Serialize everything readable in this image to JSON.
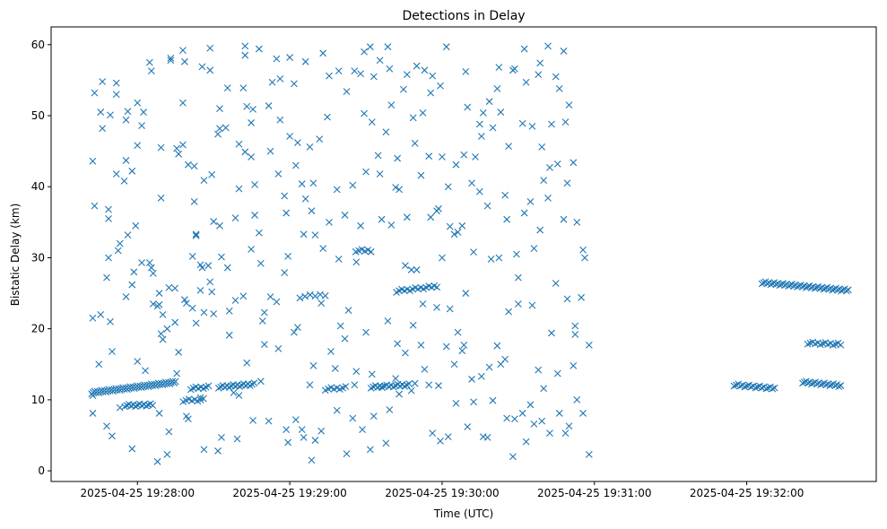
{
  "chart_data": {
    "type": "scatter",
    "title": "Detections in Delay",
    "xlabel": "Time (UTC)",
    "ylabel": "Bistatic Delay (km)",
    "x_units": "seconds after 2025-04-25 19:27:00 UTC",
    "xlim": [
      26,
      351
    ],
    "ylim": [
      -1.5,
      62.5
    ],
    "marker": "x",
    "color": "#1f77b4",
    "grid": false,
    "x_ticks": [
      {
        "value": 60,
        "label": "2025-04-25 19:28:00"
      },
      {
        "value": 120,
        "label": "2025-04-25 19:29:00"
      },
      {
        "value": 180,
        "label": "2025-04-25 19:30:00"
      },
      {
        "value": 240,
        "label": "2025-04-25 19:31:00"
      },
      {
        "value": 300,
        "label": "2025-04-25 19:32:00"
      }
    ],
    "y_ticks": [
      {
        "value": 0,
        "label": "0"
      },
      {
        "value": 10,
        "label": "10"
      },
      {
        "value": 20,
        "label": "20"
      },
      {
        "value": 30,
        "label": "30"
      },
      {
        "value": 40,
        "label": "40"
      },
      {
        "value": 50,
        "label": "50"
      },
      {
        "value": 60,
        "label": "60"
      }
    ],
    "tracks": [
      {
        "t0": 42,
        "t1": 75,
        "d0": 11.0,
        "d1": 12.5,
        "n": 60
      },
      {
        "t0": 55,
        "t1": 66,
        "d0": 9.2,
        "d1": 9.3,
        "n": 14
      },
      {
        "t0": 78,
        "t1": 86,
        "d0": 9.9,
        "d1": 10.0,
        "n": 8
      },
      {
        "t0": 81,
        "t1": 88,
        "d0": 11.6,
        "d1": 11.8,
        "n": 8
      },
      {
        "t0": 92,
        "t1": 106,
        "d0": 11.8,
        "d1": 12.2,
        "n": 18
      },
      {
        "t0": 124,
        "t1": 134,
        "d0": 24.5,
        "d1": 24.8,
        "n": 6
      },
      {
        "t0": 134,
        "t1": 142,
        "d0": 11.5,
        "d1": 11.7,
        "n": 8
      },
      {
        "t0": 146,
        "t1": 152,
        "d0": 31.0,
        "d1": 31.0,
        "n": 6
      },
      {
        "t0": 152,
        "t1": 167,
        "d0": 11.8,
        "d1": 12.1,
        "n": 18
      },
      {
        "t0": 162,
        "t1": 178,
        "d0": 25.3,
        "d1": 26.0,
        "n": 16
      },
      {
        "t0": 295,
        "t1": 311,
        "d0": 12.1,
        "d1": 11.6,
        "n": 20
      },
      {
        "t0": 306,
        "t1": 340,
        "d0": 26.5,
        "d1": 25.4,
        "n": 50
      },
      {
        "t0": 322,
        "t1": 337,
        "d0": 12.5,
        "d1": 12.0,
        "n": 22
      },
      {
        "t0": 324,
        "t1": 337,
        "d0": 18.0,
        "d1": 17.8,
        "n": 14
      }
    ],
    "points": [
      [
        42,
        43.6
      ],
      [
        42,
        21.5
      ],
      [
        42,
        8.1
      ],
      [
        42,
        10.6
      ],
      [
        43,
        53.2
      ],
      [
        43,
        37.3
      ],
      [
        44,
        15
      ],
      [
        45,
        50.5
      ],
      [
        45,
        22
      ],
      [
        46,
        54.8
      ],
      [
        46,
        48.2
      ],
      [
        47,
        27.2
      ],
      [
        47,
        6.3
      ],
      [
        48,
        35.5
      ],
      [
        48,
        36.8
      ],
      [
        48,
        30
      ],
      [
        49,
        50.1
      ],
      [
        49,
        21
      ],
      [
        50,
        16.8
      ],
      [
        50,
        4.9
      ],
      [
        51,
        54.6
      ],
      [
        51,
        41.8
      ],
      [
        51,
        53
      ],
      [
        52,
        31
      ],
      [
        53,
        32
      ],
      [
        53,
        8.9
      ],
      [
        54,
        40.8
      ],
      [
        55,
        43.7
      ],
      [
        55,
        24.5
      ],
      [
        55,
        49.4
      ],
      [
        56,
        33.2
      ],
      [
        56,
        50.6
      ],
      [
        57,
        26.2
      ],
      [
        57,
        42.2
      ],
      [
        57,
        3.1
      ],
      [
        58,
        28
      ],
      [
        59,
        34.5
      ],
      [
        60,
        15.4
      ],
      [
        60,
        51.8
      ],
      [
        60,
        45.8
      ],
      [
        61,
        48.6
      ],
      [
        61,
        29.3
      ],
      [
        62,
        50.5
      ],
      [
        63,
        14.1
      ],
      [
        64,
        57.5
      ],
      [
        64,
        29.3
      ],
      [
        65,
        56.3
      ],
      [
        65,
        28.6
      ],
      [
        66,
        27.8
      ],
      [
        66,
        23.5
      ],
      [
        67,
        23.2
      ],
      [
        67,
        1.3
      ],
      [
        68,
        23.4
      ],
      [
        68,
        25
      ],
      [
        68,
        8.1
      ],
      [
        69,
        45.5
      ],
      [
        69,
        19.3
      ],
      [
        69,
        38.4
      ],
      [
        70,
        18.5
      ],
      [
        70,
        22
      ],
      [
        71,
        20
      ],
      [
        71,
        2.3
      ],
      [
        72,
        25.8
      ],
      [
        72,
        5.5
      ],
      [
        73,
        58.1
      ],
      [
        73,
        57.8
      ],
      [
        74,
        25.7
      ],
      [
        74,
        20.9
      ],
      [
        75,
        45.4
      ],
      [
        75,
        13.7
      ],
      [
        76,
        44.6
      ],
      [
        76,
        16.7
      ],
      [
        77,
        59.2
      ],
      [
        77,
        45.9
      ],
      [
        77,
        51.8
      ],
      [
        78,
        57.6
      ],
      [
        78,
        24.1
      ],
      [
        79,
        23.6
      ],
      [
        79,
        7.7
      ],
      [
        80,
        43.1
      ],
      [
        80,
        7.3
      ],
      [
        81,
        30.2
      ],
      [
        81,
        22.9
      ],
      [
        82,
        37.9
      ],
      [
        82,
        42.9
      ],
      [
        83,
        33.3
      ],
      [
        83,
        33.1
      ],
      [
        83,
        20.8
      ],
      [
        84,
        29
      ],
      [
        84,
        25.4
      ],
      [
        84,
        10.3
      ],
      [
        85,
        56.9
      ],
      [
        85,
        28.6
      ],
      [
        86,
        40.9
      ],
      [
        86,
        22.3
      ],
      [
        86,
        3
      ],
      [
        87,
        28.9
      ],
      [
        88,
        59.5
      ],
      [
        88,
        56.4
      ],
      [
        88,
        26.6
      ],
      [
        89,
        41.7
      ],
      [
        89,
        25.2
      ],
      [
        90,
        35.1
      ],
      [
        90,
        22.1
      ],
      [
        91,
        47.4
      ],
      [
        91,
        2.8
      ],
      [
        92,
        51
      ],
      [
        92,
        48.2
      ],
      [
        92,
        34.5
      ],
      [
        93,
        30.1
      ],
      [
        93,
        4.7
      ],
      [
        94,
        48.3
      ],
      [
        95,
        53.9
      ],
      [
        95,
        28.6
      ],
      [
        96,
        22.5
      ],
      [
        96,
        19.1
      ],
      [
        97,
        11
      ],
      [
        98,
        35.6
      ],
      [
        98,
        24
      ],
      [
        99,
        4.5
      ],
      [
        100,
        46
      ],
      [
        100,
        39.7
      ],
      [
        100,
        10.6
      ],
      [
        101,
        53.9
      ],
      [
        101,
        24.6
      ],
      [
        102,
        59.8
      ],
      [
        102,
        58.5
      ],
      [
        102,
        44.9
      ],
      [
        103,
        51.3
      ],
      [
        103,
        15.2
      ],
      [
        104,
        49
      ],
      [
        104,
        44.2
      ],
      [
        104,
        31.2
      ],
      [
        105,
        50.9
      ],
      [
        105,
        7.1
      ],
      [
        106,
        40.3
      ],
      [
        106,
        36
      ],
      [
        107,
        59.4
      ],
      [
        107,
        33.5
      ],
      [
        108,
        29.2
      ],
      [
        108,
        12.6
      ],
      [
        109,
        21.1
      ],
      [
        110,
        22.3
      ],
      [
        110,
        17.8
      ],
      [
        111,
        51.4
      ],
      [
        111,
        7
      ],
      [
        112,
        45
      ],
      [
        112,
        24.5
      ],
      [
        113,
        54.7
      ],
      [
        114,
        58
      ],
      [
        114,
        23.8
      ],
      [
        115,
        41.8
      ],
      [
        115,
        17.2
      ],
      [
        116,
        55.2
      ],
      [
        116,
        49.4
      ],
      [
        117,
        38.7
      ],
      [
        117,
        27.9
      ],
      [
        118,
        36.3
      ],
      [
        118,
        5.8
      ],
      [
        119,
        30.2
      ],
      [
        119,
        4
      ],
      [
        120,
        58.2
      ],
      [
        120,
        47.1
      ],
      [
        121,
        54.5
      ],
      [
        121,
        19.5
      ],
      [
        122,
        43
      ],
      [
        122,
        7.2
      ],
      [
        123,
        46.2
      ],
      [
        123,
        20.2
      ],
      [
        124,
        40.4
      ],
      [
        124,
        5.8
      ],
      [
        125,
        33.3
      ],
      [
        125,
        4.7
      ],
      [
        126,
        57.6
      ],
      [
        126,
        38.3
      ],
      [
        127,
        45.6
      ],
      [
        127,
        12.1
      ],
      [
        128,
        36.6
      ],
      [
        128,
        1.5
      ],
      [
        129,
        40.5
      ],
      [
        129,
        14.8
      ],
      [
        130,
        33.2
      ],
      [
        130,
        4.3
      ],
      [
        131,
        46.7
      ],
      [
        132,
        23.6
      ],
      [
        132,
        5.6
      ],
      [
        133,
        58.8
      ],
      [
        133,
        31.3
      ],
      [
        134,
        49.8
      ],
      [
        135,
        55.6
      ],
      [
        135,
        35
      ],
      [
        136,
        16.8
      ],
      [
        137,
        14.4
      ],
      [
        138,
        39.6
      ],
      [
        138,
        8.5
      ],
      [
        139,
        56.3
      ],
      [
        139,
        29.8
      ],
      [
        140,
        20.4
      ],
      [
        141,
        36
      ],
      [
        141,
        18.6
      ],
      [
        142,
        53.4
      ],
      [
        142,
        2.4
      ],
      [
        143,
        22.6
      ],
      [
        144,
        40.2
      ],
      [
        144,
        7.4
      ],
      [
        145,
        56.3
      ],
      [
        145,
        12.1
      ],
      [
        146,
        29.4
      ],
      [
        146,
        14
      ],
      [
        147,
        55.9
      ],
      [
        147,
        34.5
      ],
      [
        148,
        5.8
      ],
      [
        149,
        59
      ],
      [
        149,
        50.3
      ],
      [
        150,
        19.5
      ],
      [
        150,
        42.1
      ],
      [
        151,
        59.7
      ],
      [
        151,
        3
      ],
      [
        152,
        49.1
      ],
      [
        152,
        13.6
      ],
      [
        153,
        55.5
      ],
      [
        153,
        7.7
      ],
      [
        154,
        44.4
      ],
      [
        155,
        57.8
      ],
      [
        155,
        41.8
      ],
      [
        156,
        35.4
      ],
      [
        156,
        11.8
      ],
      [
        157,
        47.7
      ],
      [
        157,
        3.9
      ],
      [
        158,
        59.7
      ],
      [
        158,
        21.1
      ],
      [
        159,
        56.6
      ],
      [
        159,
        8.6
      ],
      [
        160,
        51.5
      ],
      [
        160,
        34.6
      ],
      [
        161,
        39.9
      ],
      [
        161,
        13
      ],
      [
        162,
        17.9
      ],
      [
        162,
        44
      ],
      [
        163,
        39.6
      ],
      [
        163,
        10.8
      ],
      [
        164,
        53.7
      ],
      [
        165,
        28.9
      ],
      [
        165,
        16.6
      ],
      [
        166,
        55.8
      ],
      [
        166,
        35.7
      ],
      [
        167,
        28.3
      ],
      [
        167,
        11.3
      ],
      [
        168,
        49.7
      ],
      [
        168,
        20.5
      ],
      [
        169,
        46.1
      ],
      [
        169,
        12.3
      ],
      [
        170,
        57
      ],
      [
        170,
        28.3
      ],
      [
        171,
        41.6
      ],
      [
        171,
        17.7
      ],
      [
        172,
        50.4
      ],
      [
        172,
        23.5
      ],
      [
        173,
        56.4
      ],
      [
        173,
        14.3
      ],
      [
        174,
        44.3
      ],
      [
        174,
        12.1
      ],
      [
        175,
        53.2
      ],
      [
        175,
        35.7
      ],
      [
        176,
        55.6
      ],
      [
        176,
        5.3
      ],
      [
        177,
        23
      ],
      [
        177,
        36.6
      ],
      [
        178,
        36.9
      ],
      [
        178,
        12
      ],
      [
        179,
        54.2
      ],
      [
        179,
        4.2
      ],
      [
        180,
        44.2
      ],
      [
        180,
        30
      ],
      [
        181,
        59.7
      ],
      [
        181,
        17.5
      ],
      [
        182,
        40
      ],
      [
        182,
        4.8
      ],
      [
        183,
        34.4
      ],
      [
        183,
        22.8
      ],
      [
        184,
        33.3
      ],
      [
        184,
        15
      ],
      [
        185,
        43.1
      ],
      [
        185,
        9.5
      ],
      [
        186,
        33.6
      ],
      [
        186,
        19.5
      ],
      [
        187,
        34.5
      ],
      [
        187,
        16.9
      ],
      [
        188,
        44.5
      ],
      [
        188,
        17.7
      ],
      [
        189,
        56.2
      ],
      [
        189,
        25
      ],
      [
        190,
        51.2
      ],
      [
        190,
        6.2
      ],
      [
        191,
        40.5
      ],
      [
        191,
        12.9
      ],
      [
        192,
        30.8
      ],
      [
        192,
        9.7
      ],
      [
        193,
        44.2
      ],
      [
        194,
        48.8
      ],
      [
        194,
        39.3
      ],
      [
        195,
        47.1
      ],
      [
        195,
        13.3
      ],
      [
        196,
        50.4
      ],
      [
        196,
        4.8
      ],
      [
        197,
        37.3
      ],
      [
        197,
        4.7
      ],
      [
        198,
        52
      ],
      [
        198,
        14.6
      ],
      [
        199,
        29.8
      ],
      [
        200,
        48.3
      ],
      [
        200,
        9.9
      ],
      [
        201,
        53.8
      ],
      [
        201,
        17.6
      ],
      [
        202,
        56.8
      ],
      [
        202,
        30
      ],
      [
        203,
        50.5
      ],
      [
        203,
        15
      ],
      [
        204,
        38.8
      ],
      [
        204,
        15.7
      ],
      [
        205,
        35.4
      ],
      [
        205,
        7.4
      ],
      [
        206,
        45.7
      ],
      [
        206,
        22.4
      ],
      [
        207,
        56.4
      ],
      [
        207,
        2
      ],
      [
        208,
        56.6
      ],
      [
        208,
        7.3
      ],
      [
        209,
        30.5
      ],
      [
        210,
        27.2
      ],
      [
        210,
        23.5
      ],
      [
        211,
        48.9
      ],
      [
        211,
        8.1
      ],
      [
        212,
        59.4
      ],
      [
        212,
        36.3
      ],
      [
        213,
        54.7
      ],
      [
        213,
        4.1
      ],
      [
        214,
        37.9
      ],
      [
        214,
        9.3
      ],
      [
        215,
        48.5
      ],
      [
        215,
        23.3
      ],
      [
        216,
        31.3
      ],
      [
        216,
        6.6
      ],
      [
        217,
        55.8
      ],
      [
        217,
        14.2
      ],
      [
        218,
        57.4
      ],
      [
        218,
        33.9
      ],
      [
        219,
        45.6
      ],
      [
        219,
        7
      ],
      [
        220,
        40.9
      ],
      [
        220,
        11.6
      ],
      [
        221,
        59.8
      ],
      [
        221,
        38.4
      ],
      [
        222,
        42.7
      ],
      [
        222,
        5.3
      ],
      [
        223,
        48.8
      ],
      [
        223,
        19.4
      ],
      [
        224,
        55.5
      ],
      [
        224,
        26.4
      ],
      [
        225,
        43.2
      ],
      [
        225,
        13.7
      ],
      [
        226,
        53.8
      ],
      [
        226,
        8.1
      ],
      [
        227,
        59.1
      ],
      [
        227,
        35.4
      ],
      [
        228,
        49.1
      ],
      [
        228,
        5.3
      ],
      [
        229,
        40.5
      ],
      [
        229,
        24.2
      ],
      [
        230,
        51.5
      ],
      [
        230,
        6.3
      ],
      [
        231,
        43.4
      ],
      [
        231,
        14.8
      ],
      [
        232,
        19.2
      ],
      [
        232,
        20.4
      ],
      [
        233,
        35
      ],
      [
        233,
        10
      ],
      [
        234,
        24.4
      ],
      [
        235,
        31.1
      ],
      [
        235,
        8.1
      ],
      [
        236,
        30
      ],
      [
        237,
        17.7
      ],
      [
        237,
        2.3
      ]
    ]
  }
}
